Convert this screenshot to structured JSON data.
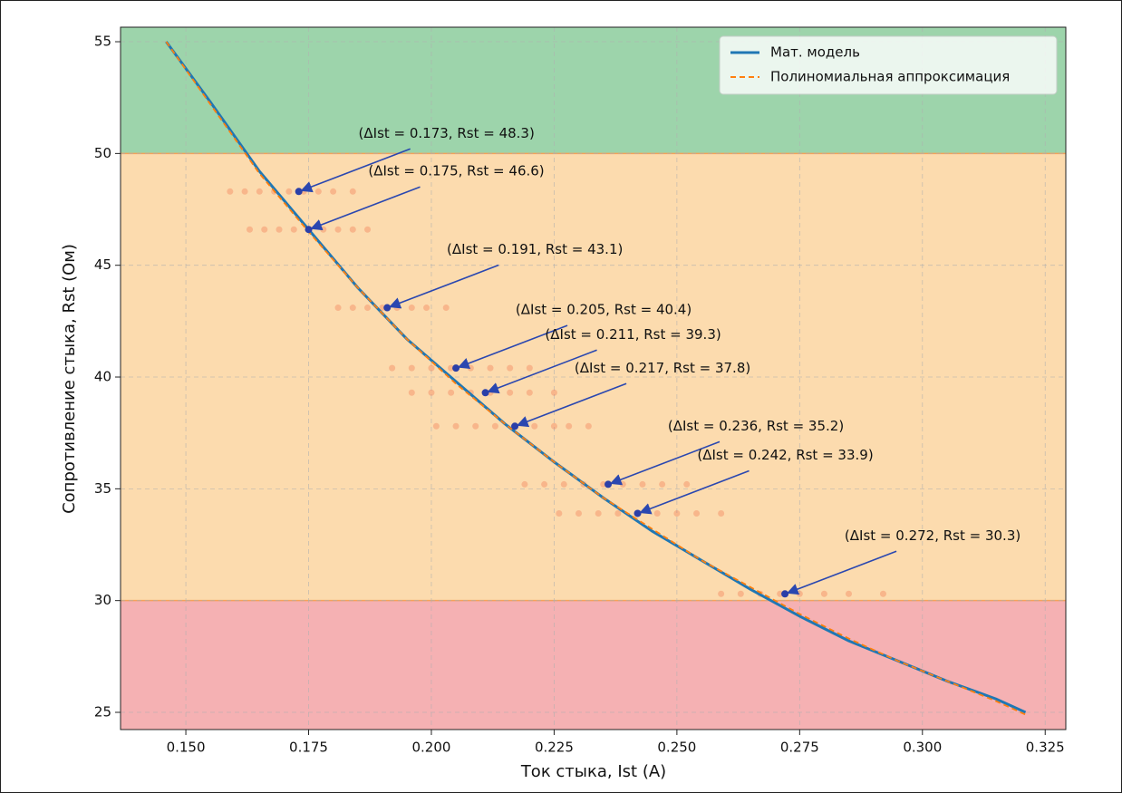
{
  "chart_data": {
    "type": "line",
    "xlabel": "Ток стыка, Ist (А)",
    "ylabel": "Сопротивление стыка, Rst (Ом)",
    "xlim": [
      0.1367,
      0.3292
    ],
    "ylim": [
      24.23,
      55.65
    ],
    "xticks": [
      {
        "value": 0.15,
        "label": "0.150"
      },
      {
        "value": 0.175,
        "label": "0.175"
      },
      {
        "value": 0.2,
        "label": "0.200"
      },
      {
        "value": 0.225,
        "label": "0.225"
      },
      {
        "value": 0.25,
        "label": "0.250"
      },
      {
        "value": 0.275,
        "label": "0.275"
      },
      {
        "value": 0.3,
        "label": "0.300"
      },
      {
        "value": 0.325,
        "label": "0.325"
      }
    ],
    "yticks": [
      25,
      30,
      35,
      40,
      45,
      50,
      55
    ],
    "grid": true,
    "legend": "upper right",
    "thresholds": [
      30,
      50
    ],
    "band_colors": [
      "#f5b1b3",
      "#fcdbae",
      "#9dd4ab"
    ],
    "x": [
      0.146,
      0.155,
      0.165,
      0.175,
      0.185,
      0.195,
      0.205,
      0.215,
      0.225,
      0.235,
      0.245,
      0.255,
      0.265,
      0.275,
      0.285,
      0.295,
      0.305,
      0.315,
      0.321
    ],
    "series": [
      {
        "name": "Мат. модель",
        "color": "#1f77b4",
        "style": "solid",
        "values": [
          55.0,
          52.3,
          49.2,
          46.6,
          44.0,
          41.7,
          39.8,
          37.9,
          36.2,
          34.6,
          33.1,
          31.8,
          30.5,
          29.3,
          28.2,
          27.3,
          26.4,
          25.6,
          25.0
        ]
      },
      {
        "name": "Полиномиальная аппроксимация",
        "color": "#ff7f0e",
        "style": "dashed",
        "values": [
          55.0,
          52.2,
          49.1,
          46.5,
          44.0,
          41.7,
          39.7,
          37.9,
          36.2,
          34.6,
          33.2,
          31.8,
          30.6,
          29.4,
          28.3,
          27.3,
          26.4,
          25.5,
          24.9
        ]
      }
    ],
    "samples_color": "#f0603c",
    "samples": [
      {
        "y": 48.3,
        "x": [
          0.159,
          0.162,
          0.165,
          0.168,
          0.171,
          0.174,
          0.177,
          0.18,
          0.184
        ]
      },
      {
        "y": 46.6,
        "x": [
          0.163,
          0.166,
          0.169,
          0.172,
          0.175,
          0.178,
          0.181,
          0.184,
          0.187
        ]
      },
      {
        "y": 43.1,
        "x": [
          0.181,
          0.184,
          0.187,
          0.19,
          0.193,
          0.196,
          0.199,
          0.203
        ]
      },
      {
        "y": 40.4,
        "x": [
          0.192,
          0.196,
          0.2,
          0.204,
          0.208,
          0.212,
          0.216,
          0.22
        ]
      },
      {
        "y": 39.3,
        "x": [
          0.196,
          0.2,
          0.204,
          0.208,
          0.212,
          0.216,
          0.22,
          0.225
        ]
      },
      {
        "y": 37.8,
        "x": [
          0.201,
          0.205,
          0.209,
          0.213,
          0.217,
          0.221,
          0.225,
          0.228,
          0.232
        ]
      },
      {
        "y": 35.2,
        "x": [
          0.219,
          0.223,
          0.227,
          0.231,
          0.235,
          0.239,
          0.243,
          0.247,
          0.252
        ]
      },
      {
        "y": 33.9,
        "x": [
          0.226,
          0.23,
          0.234,
          0.238,
          0.242,
          0.246,
          0.25,
          0.254,
          0.259
        ]
      },
      {
        "y": 30.3,
        "x": [
          0.259,
          0.263,
          0.267,
          0.271,
          0.275,
          0.28,
          0.285,
          0.292
        ]
      }
    ],
    "point_color": "#2b3fa8",
    "annotations": [
      {
        "text": "(ΔIst = 0.173, Rst = 48.3)",
        "x": 0.173,
        "y": 48.3
      },
      {
        "text": "(ΔIst = 0.175, Rst = 46.6)",
        "x": 0.175,
        "y": 46.6
      },
      {
        "text": "(ΔIst = 0.191, Rst = 43.1)",
        "x": 0.191,
        "y": 43.1
      },
      {
        "text": "(ΔIst = 0.205, Rst = 40.4)",
        "x": 0.205,
        "y": 40.4
      },
      {
        "text": "(ΔIst = 0.211, Rst = 39.3)",
        "x": 0.211,
        "y": 39.3
      },
      {
        "text": "(ΔIst = 0.217, Rst = 37.8)",
        "x": 0.217,
        "y": 37.8
      },
      {
        "text": "(ΔIst = 0.236, Rst = 35.2)",
        "x": 0.236,
        "y": 35.2
      },
      {
        "text": "(ΔIst = 0.242, Rst = 33.9)",
        "x": 0.242,
        "y": 33.9
      },
      {
        "text": "(ΔIst = 0.272, Rst = 30.3)",
        "x": 0.272,
        "y": 30.3
      }
    ]
  }
}
